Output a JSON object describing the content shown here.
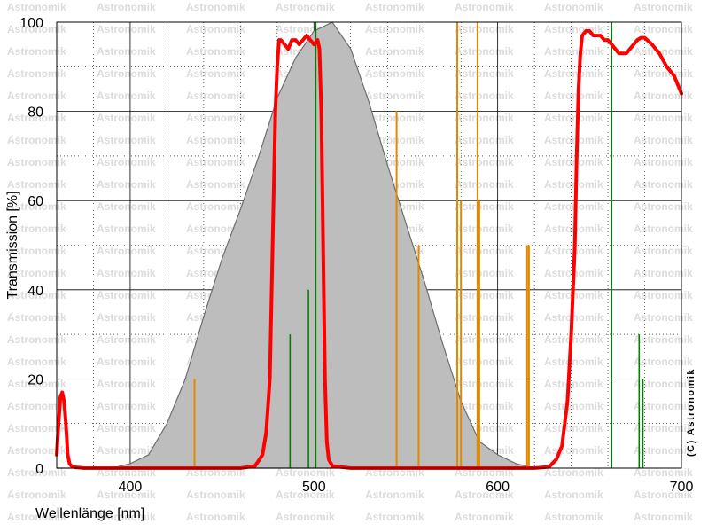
{
  "chart_data": {
    "type": "line",
    "xlabel": "Wellenlänge [nm]",
    "ylabel": "Transmission [%]",
    "copyright": "(C) Astronomik",
    "watermark": "Astronomik",
    "xlim": [
      360,
      700
    ],
    "ylim": [
      0,
      100
    ],
    "x_ticks": [
      400,
      500,
      600,
      700
    ],
    "y_ticks": [
      0,
      20,
      40,
      60,
      80,
      100
    ],
    "grid": true,
    "colors": {
      "filter": "#ff0000",
      "sensitivity_fill": "#bdbdbd",
      "sensitivity_stroke": "#6e6e6e",
      "orange_lines": "#e08a00",
      "green_lines": "#008000"
    },
    "series": [
      {
        "kind": "area",
        "x": [
          360,
          390,
          400,
          410,
          420,
          430,
          440,
          450,
          460,
          470,
          480,
          490,
          500,
          510,
          520,
          530,
          540,
          550,
          560,
          570,
          580,
          590,
          600,
          610,
          620
        ],
        "y": [
          0,
          0,
          1,
          3,
          10,
          20,
          34,
          47,
          58,
          70,
          83,
          92,
          98,
          100,
          94,
          82,
          68,
          55,
          42,
          28,
          15,
          6,
          3,
          1,
          0
        ]
      },
      {
        "kind": "line",
        "x": [
          360,
          361,
          362,
          363,
          364,
          365,
          366,
          367,
          368,
          370,
          375,
          380,
          400,
          430,
          460,
          468,
          472,
          474,
          476,
          477,
          478,
          479,
          480,
          481,
          482,
          484,
          486,
          488,
          490,
          492,
          494,
          496,
          498,
          500,
          502,
          503,
          504,
          505,
          506,
          507,
          508,
          510,
          520,
          560,
          600,
          620,
          628,
          632,
          635,
          638,
          640,
          642,
          643,
          644,
          645,
          646,
          648,
          650,
          652,
          654,
          656,
          658,
          660,
          662,
          664,
          666,
          668,
          670,
          672,
          674,
          676,
          678,
          680,
          684,
          688,
          692,
          696,
          700
        ],
        "y": [
          3,
          10,
          16,
          17,
          15,
          10,
          3,
          1,
          0.5,
          0.2,
          0,
          0,
          0,
          0,
          0,
          0.5,
          3,
          8,
          20,
          40,
          60,
          80,
          90,
          96,
          96,
          95,
          94,
          96,
          96,
          95,
          96,
          97,
          96,
          95,
          96,
          94,
          80,
          50,
          20,
          6,
          2,
          0.5,
          0,
          0,
          0,
          0,
          0.3,
          2,
          5,
          15,
          30,
          50,
          70,
          85,
          93,
          97,
          98,
          98,
          97,
          97,
          97,
          96,
          96,
          95,
          94,
          93,
          93,
          93,
          94,
          95,
          96,
          96.5,
          96.5,
          95,
          93,
          90,
          88,
          84
        ]
      },
      {
        "kind": "bars",
        "name": "orange",
        "x": [
          435,
          545,
          557,
          578,
          580,
          589,
          590,
          616,
          617
        ],
        "y": [
          20,
          80,
          50,
          100,
          60,
          100,
          60,
          50,
          50
        ]
      },
      {
        "kind": "bars",
        "name": "green",
        "x": [
          487,
          497,
          501,
          662,
          677,
          679
        ],
        "y": [
          30,
          40,
          100,
          100,
          30,
          20
        ]
      }
    ]
  }
}
